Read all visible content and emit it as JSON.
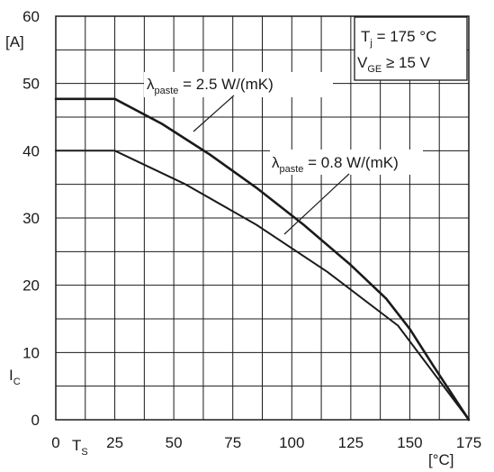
{
  "chart_data": {
    "type": "line",
    "xlabel": "T",
    "xlabel_sub": "S",
    "xunit": "[°C]",
    "ylabel": "I",
    "ylabel_sub": "C",
    "yunit": "[A]",
    "xlim": [
      0,
      175
    ],
    "ylim": [
      0,
      60
    ],
    "xticks": [
      "0",
      "25",
      "50",
      "75",
      "100",
      "125",
      "150",
      "175"
    ],
    "yticks": [
      "0",
      "10",
      "20",
      "30",
      "40",
      "50",
      "60"
    ],
    "x_grid_step": 12.5,
    "y_grid_step": 5,
    "grid": true,
    "legend_box": {
      "line1_main": "T",
      "line1_sub": "j",
      "line1_rest": " = 175 °C",
      "line2_main": "V",
      "line2_sub": "GE",
      "line2_rest": " ≥ 15 V",
      "position": "top-right"
    },
    "series": [
      {
        "label_main": "λ",
        "label_sub": "paste",
        "label_rest": " = 2.5 W/(mK)",
        "width": 2.6,
        "x": [
          0,
          25,
          45,
          65,
          85,
          105,
          125,
          140,
          150,
          160,
          175
        ],
        "y": [
          47.7,
          47.7,
          44.0,
          39.5,
          34.5,
          29.0,
          23.0,
          18.0,
          13.5,
          8.0,
          0
        ]
      },
      {
        "label_main": "λ",
        "label_sub": "paste",
        "label_rest": " = 0.8 W/(mK)",
        "width": 2.0,
        "x": [
          0,
          25,
          55,
          85,
          115,
          145,
          175
        ],
        "y": [
          40.0,
          40.0,
          35.0,
          29.0,
          22.0,
          14.0,
          0
        ]
      }
    ]
  }
}
